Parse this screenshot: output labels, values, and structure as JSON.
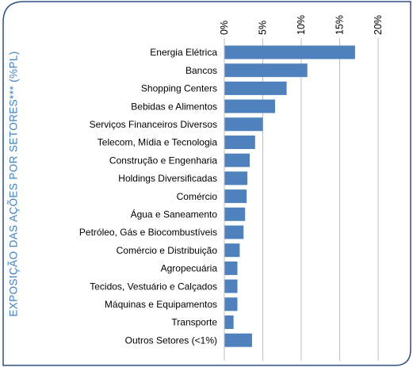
{
  "side_title": "EXPOSIÇÃO DAS AÇÕES POR SETORES*** (%PL)",
  "colors": {
    "bar": "#4f81bd",
    "frame": "#2f4f7f",
    "title": "#3f7fbf",
    "grid": "#bfbfbf",
    "text": "#000000"
  },
  "chart_data": {
    "type": "bar",
    "orientation": "horizontal",
    "title": "",
    "xlabel": "",
    "ylabel": "",
    "categories": [
      "Energia Elétrica",
      "Bancos",
      "Shopping Centers",
      "Bebidas e Alimentos",
      "Serviços Financeiros Diversos",
      "Telecom, Mídia e Tecnologia",
      "Construção e Engenharia",
      "Holdings Diversificadas",
      "Comércio",
      "Água e Saneamento",
      "Petróleo, Gás e Biocombustíveis",
      "Comércio e Distribuição",
      "Agropecuária",
      "Tecidos, Vestuário e Calçados",
      "Máquinas e Equipamentos",
      "Transporte",
      "Outros Setores (<1%)"
    ],
    "values": [
      17.0,
      10.8,
      8.1,
      6.6,
      5.0,
      4.0,
      3.3,
      3.0,
      2.9,
      2.7,
      2.5,
      2.0,
      1.7,
      1.7,
      1.7,
      1.2,
      3.6
    ],
    "xlim": [
      0,
      20
    ],
    "ticks": [
      0,
      5,
      10,
      15,
      20
    ],
    "tick_labels": [
      "0%",
      "5%",
      "10%",
      "15%",
      "20%"
    ],
    "tick_position": "top",
    "grid": true
  }
}
